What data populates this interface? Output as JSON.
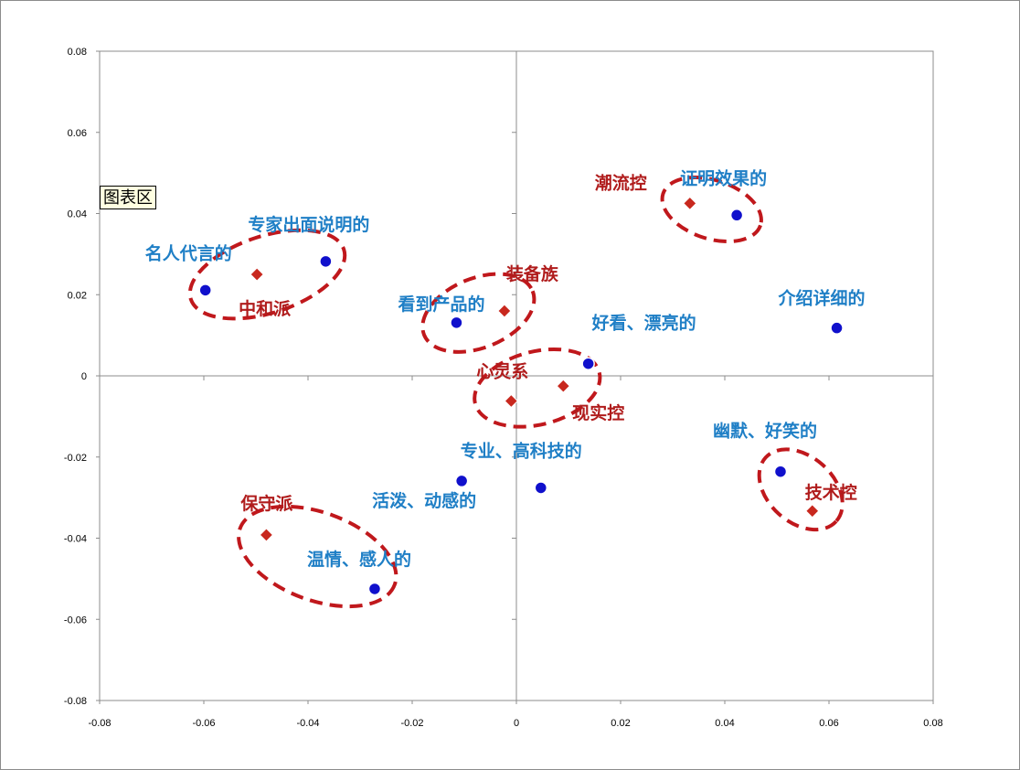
{
  "tooltip": {
    "chart_area_label": "图表区"
  },
  "chart_data": {
    "type": "scatter",
    "title": "",
    "xlabel": "",
    "ylabel": "",
    "xlim": [
      -0.08,
      0.08
    ],
    "ylim": [
      -0.08,
      0.08
    ],
    "x_ticks": [
      "-0.08",
      "-0.06",
      "-0.04",
      "-0.02",
      "0",
      "0.02",
      "0.04",
      "0.06",
      "0.08"
    ],
    "y_ticks": [
      "0.08",
      "0.06",
      "0.04",
      "0.02",
      "0",
      "-0.02",
      "-0.04",
      "-0.06",
      "-0.08"
    ],
    "grid": false,
    "colors": {
      "blue_marker": "#1010cc",
      "red_marker": "#c8281e",
      "blue_label": "#1f7fc6",
      "red_label": "#b01c1c",
      "cluster_ring": "#c0181c"
    },
    "series": [
      {
        "marker": "circle",
        "points": [
          {
            "label": "名人代言的",
            "x": -0.0597,
            "y": 0.0211
          },
          {
            "label": "专家出面说明的",
            "x": -0.0366,
            "y": 0.0282
          },
          {
            "label": "看到产品的",
            "x": -0.0115,
            "y": 0.0131
          },
          {
            "label": "好看、漂亮的",
            "x": 0.0138,
            "y": 0.003
          },
          {
            "label": "证明效果的",
            "x": 0.0423,
            "y": 0.0396
          },
          {
            "label": "介绍详细的",
            "x": 0.0615,
            "y": 0.0118
          },
          {
            "label": "专业、高科技的",
            "x": 0.0047,
            "y": -0.0276
          },
          {
            "label": "活泼、动感的",
            "x": -0.0105,
            "y": -0.0259
          },
          {
            "label": "温情、感人的",
            "x": -0.0272,
            "y": -0.0525
          },
          {
            "label": "幽默、好笑的",
            "x": 0.0507,
            "y": -0.0236
          }
        ]
      },
      {
        "marker": "diamond",
        "points": [
          {
            "label": "中和派",
            "x": -0.0498,
            "y": 0.025
          },
          {
            "label": "装备族",
            "x": -0.0023,
            "y": 0.016
          },
          {
            "label": "潮流控",
            "x": 0.0333,
            "y": 0.0425
          },
          {
            "label": "心灵系",
            "x": -0.001,
            "y": -0.0062
          },
          {
            "label": "现实控",
            "x": 0.009,
            "y": -0.0025
          },
          {
            "label": "保守派",
            "x": -0.048,
            "y": -0.0392
          },
          {
            "label": "技术控",
            "x": 0.0568,
            "y": -0.0333
          }
        ]
      }
    ]
  }
}
